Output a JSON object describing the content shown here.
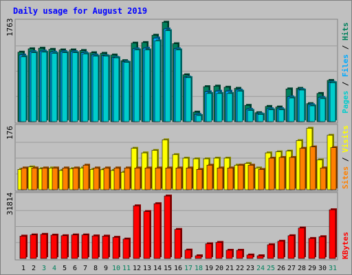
{
  "title": "Daily usage for August 2019",
  "colors": {
    "background": "#c0c0c0",
    "plot_background": "#c0c0c0",
    "title": "#0000ff",
    "pages": "#00cccc",
    "files": "#00aaff",
    "hits": "#00805c",
    "sites": "#ff8000",
    "visits": "#ffff00",
    "kbytes": "#ff0000",
    "weekday_label": "#000000",
    "weekend_label": "#00805c"
  },
  "chart_data": [
    {
      "type": "bar",
      "name": "hits-files-pages",
      "categories": [
        "1",
        "2",
        "3",
        "4",
        "5",
        "6",
        "7",
        "8",
        "9",
        "10",
        "11",
        "12",
        "13",
        "14",
        "15",
        "16",
        "17",
        "18",
        "19",
        "20",
        "21",
        "22",
        "23",
        "24",
        "25",
        "26",
        "27",
        "28",
        "29",
        "30",
        "31"
      ],
      "weekend_days": [
        "3",
        "4",
        "10",
        "11",
        "17",
        "18",
        "24",
        "25",
        "31"
      ],
      "ylim": [
        0,
        1763
      ],
      "max_label": "1763",
      "right_label": [
        "Pages",
        "/",
        "Files",
        "/",
        "Hits"
      ],
      "series": [
        {
          "name": "Hits",
          "color_key": "hits",
          "values": [
            1230,
            1290,
            1300,
            1280,
            1270,
            1270,
            1260,
            1220,
            1210,
            1180,
            1080,
            1390,
            1400,
            1530,
            1760,
            1380,
            830,
            170,
            620,
            630,
            610,
            590,
            290,
            160,
            270,
            260,
            580,
            590,
            320,
            500,
            730
          ]
        },
        {
          "name": "Files",
          "color_key": "files",
          "values": [
            1180,
            1240,
            1250,
            1230,
            1240,
            1240,
            1220,
            1180,
            1170,
            1140,
            1060,
            1290,
            1300,
            1480,
            1640,
            1290,
            790,
            130,
            530,
            540,
            540,
            560,
            220,
            140,
            230,
            230,
            440,
            570,
            300,
            430,
            700
          ]
        },
        {
          "name": "Pages",
          "color_key": "pages",
          "values": [
            1150,
            1220,
            1230,
            1210,
            1220,
            1220,
            1200,
            1160,
            1160,
            1130,
            1050,
            1270,
            1270,
            1430,
            1610,
            1270,
            780,
            110,
            500,
            500,
            500,
            540,
            200,
            130,
            210,
            210,
            420,
            560,
            280,
            410,
            690
          ]
        }
      ]
    },
    {
      "type": "bar",
      "name": "visits-sites",
      "categories": [
        "1",
        "2",
        "3",
        "4",
        "5",
        "6",
        "7",
        "8",
        "9",
        "10",
        "11",
        "12",
        "13",
        "14",
        "15",
        "16",
        "17",
        "18",
        "19",
        "20",
        "21",
        "22",
        "23",
        "24",
        "25",
        "26",
        "27",
        "28",
        "29",
        "30",
        "31"
      ],
      "ylim": [
        0,
        176
      ],
      "max_label": "176",
      "right_label": [
        "Sites",
        "/",
        "Visits"
      ],
      "series": [
        {
          "name": "Visits",
          "color_key": "visits",
          "values": [
            58,
            65,
            60,
            62,
            55,
            60,
            62,
            58,
            57,
            55,
            50,
            118,
            105,
            112,
            142,
            100,
            90,
            88,
            88,
            90,
            90,
            70,
            75,
            62,
            105,
            108,
            110,
            140,
            175,
            85,
            155
          ]
        },
        {
          "name": "Sites",
          "color_key": "sites",
          "values": [
            62,
            62,
            62,
            62,
            62,
            62,
            70,
            62,
            62,
            62,
            62,
            62,
            62,
            62,
            62,
            62,
            62,
            58,
            70,
            62,
            62,
            70,
            70,
            58,
            90,
            92,
            92,
            118,
            122,
            62,
            120
          ]
        }
      ]
    },
    {
      "type": "bar",
      "name": "kbytes",
      "categories": [
        "1",
        "2",
        "3",
        "4",
        "5",
        "6",
        "7",
        "8",
        "9",
        "10",
        "11",
        "12",
        "13",
        "14",
        "15",
        "16",
        "17",
        "18",
        "19",
        "20",
        "21",
        "22",
        "23",
        "24",
        "25",
        "26",
        "27",
        "28",
        "29",
        "30",
        "31"
      ],
      "ylim": [
        0,
        31814
      ],
      "max_label": "31814",
      "right_label": [
        "KBytes"
      ],
      "series": [
        {
          "name": "KBytes",
          "color_key": "kbytes",
          "values": [
            11400,
            12000,
            12300,
            11900,
            11600,
            12000,
            12000,
            11500,
            11400,
            10800,
            9900,
            26800,
            23900,
            27900,
            31800,
            14800,
            4300,
            1400,
            7500,
            8200,
            4200,
            4200,
            1800,
            1400,
            7000,
            8800,
            11600,
            15500,
            10200,
            11100,
            24800
          ]
        }
      ]
    }
  ]
}
